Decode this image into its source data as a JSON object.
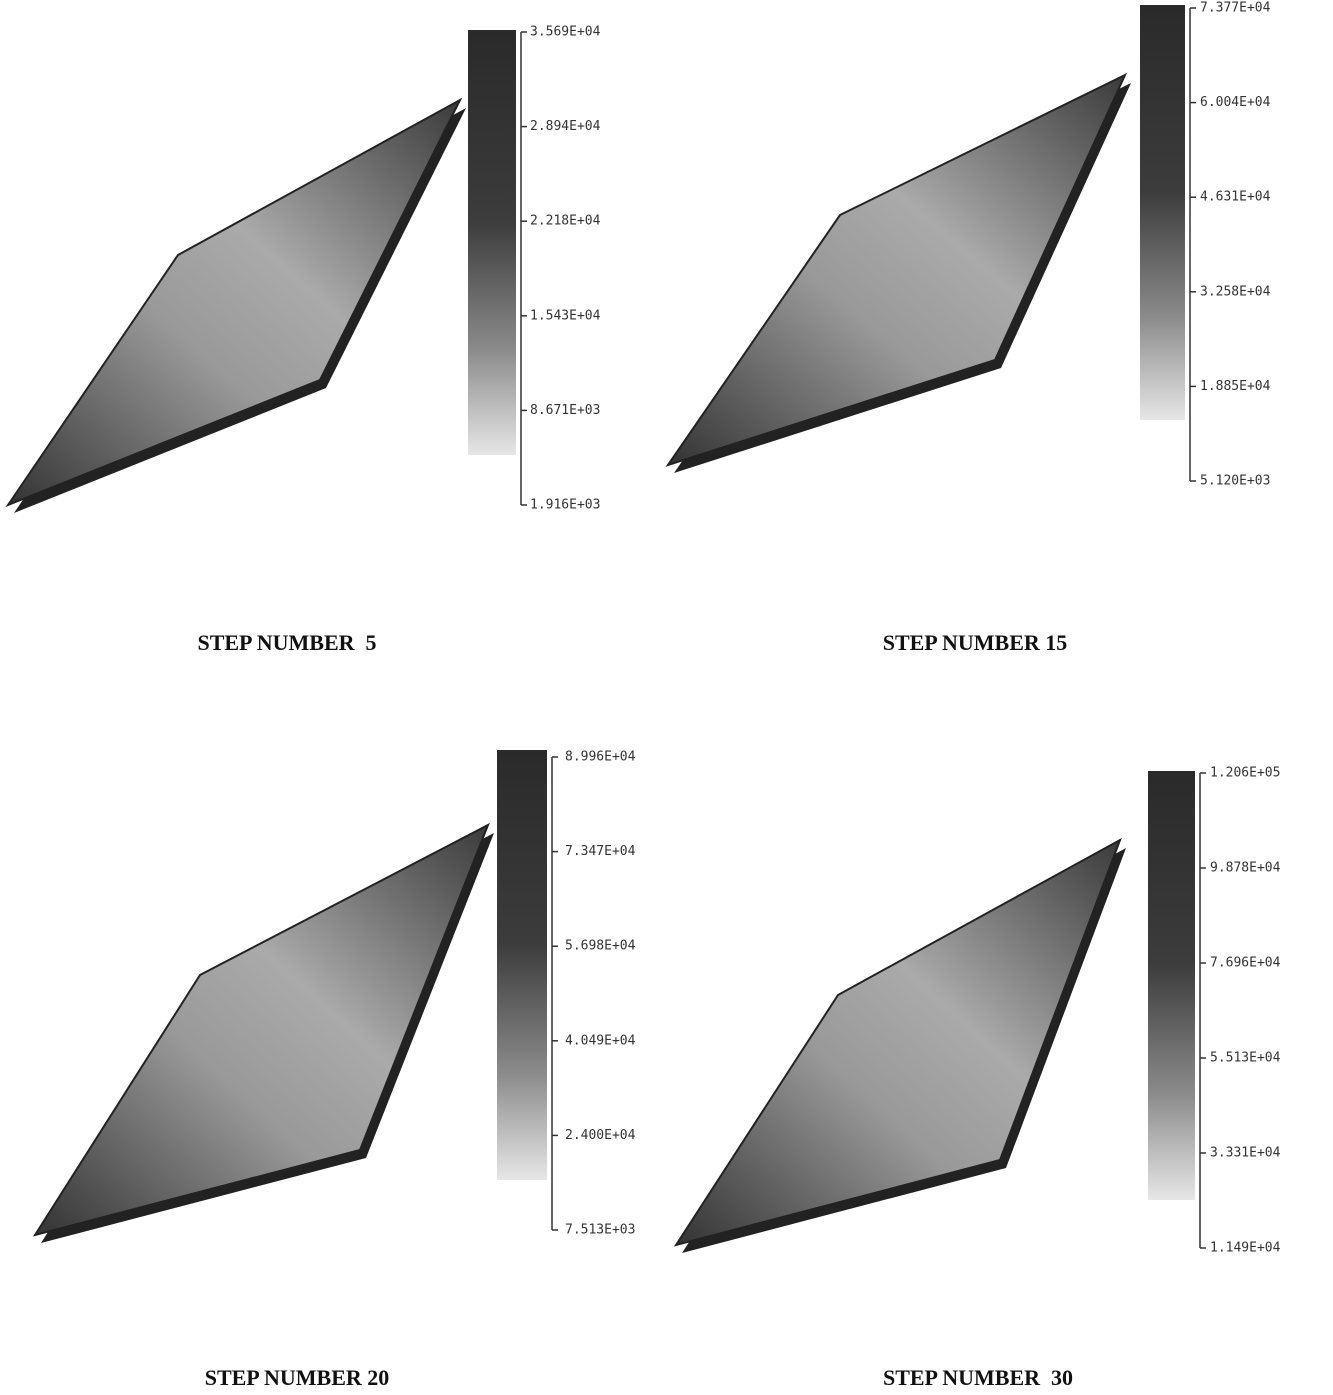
{
  "panels": [
    {
      "caption": "STEP NUMBER  5",
      "legend": [
        "3.569E+04",
        "2.894E+04",
        "2.218E+04",
        "1.543E+04",
        "8.671E+03",
        "1.916E+03"
      ]
    },
    {
      "caption": "STEP NUMBER 15",
      "legend": [
        "7.377E+04",
        "6.004E+04",
        "4.631E+04",
        "3.258E+04",
        "1.885E+04",
        "5.120E+03"
      ]
    },
    {
      "caption": "STEP NUMBER 20",
      "legend": [
        "8.996E+04",
        "7.347E+04",
        "5.698E+04",
        "4.049E+04",
        "2.400E+04",
        "7.513E+03"
      ]
    },
    {
      "caption": "STEP NUMBER  30",
      "legend": [
        "1.206E+05",
        "9.878E+04",
        "7.696E+04",
        "5.513E+04",
        "3.331E+04",
        "1.149E+04"
      ]
    }
  ]
}
